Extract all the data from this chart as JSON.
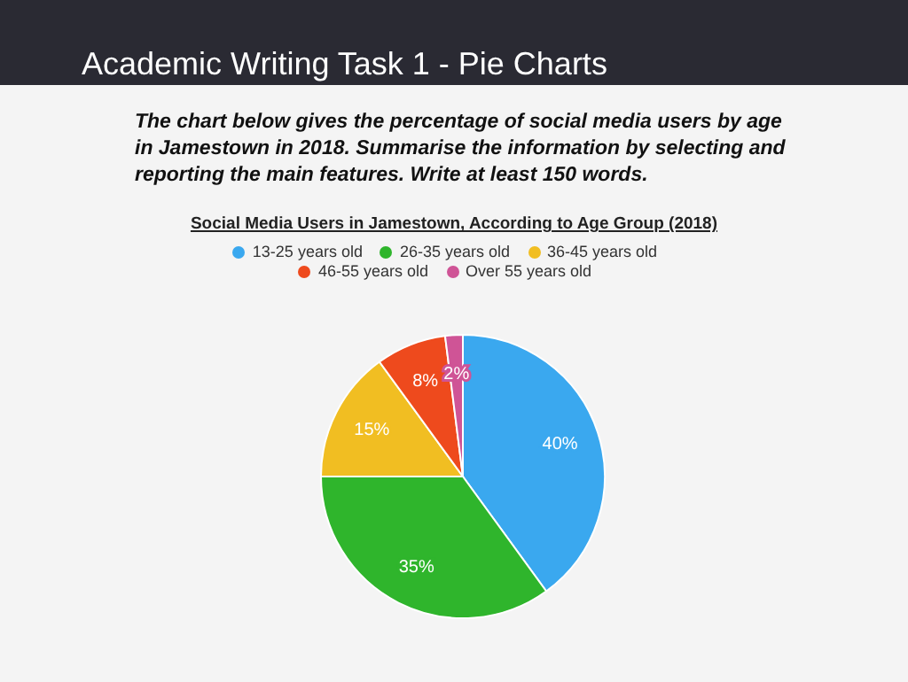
{
  "chart_data": {
    "type": "pie",
    "title": "Social Media Users in Jamestown, According to Age Group (2018)",
    "annotations": [
      "Academic Writing Task 1 - Pie Charts",
      "The chart below gives the percentage of social media users by age in Jamestown in 2018. Summarise the information by selecting and reporting the main features. Write at least 150 words."
    ],
    "categories": [
      "13-25 years old",
      "26-35 years old",
      "36-45 years old",
      "46-55 years old",
      "Over 55 years old"
    ],
    "values": [
      40,
      35,
      15,
      8,
      2
    ],
    "colors": [
      "#3aa8ef",
      "#2fb52c",
      "#f1be22",
      "#ee4a1d",
      "#cf5496"
    ],
    "value_labels": [
      "40%",
      "35%",
      "15%",
      "8%",
      "2%"
    ],
    "legend": "top"
  }
}
